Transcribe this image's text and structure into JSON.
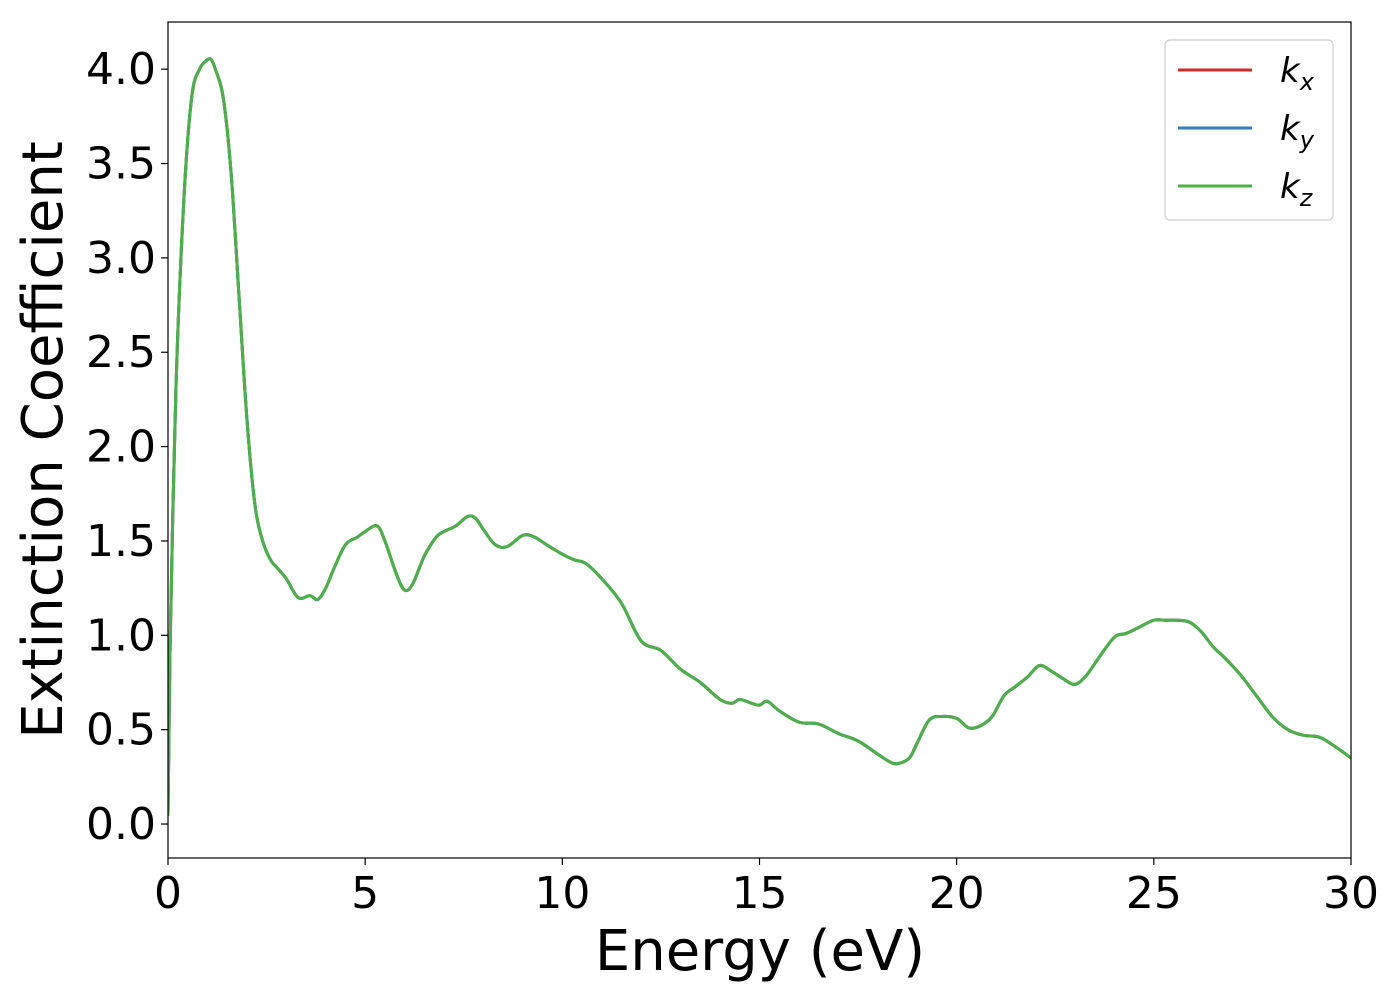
{
  "chart_data": {
    "type": "line",
    "xlabel": "Energy (eV)",
    "ylabel": "Extinction Coefficient",
    "xlim": [
      0,
      30
    ],
    "ylim": [
      -0.18,
      4.25
    ],
    "xticks": [
      0,
      5,
      10,
      15,
      20,
      25,
      30
    ],
    "xtick_labels": [
      "0",
      "5",
      "10",
      "15",
      "20",
      "25",
      "30"
    ],
    "yticks": [
      0.0,
      0.5,
      1.0,
      1.5,
      2.0,
      2.5,
      3.0,
      3.5,
      4.0
    ],
    "ytick_labels": [
      "0.0",
      "0.5",
      "1.0",
      "1.5",
      "2.0",
      "2.5",
      "3.0",
      "3.5",
      "4.0"
    ],
    "grid": false,
    "legend_position": "top-right",
    "series": [
      {
        "name": "k",
        "subscript": "x",
        "color": "#d62728",
        "x": [
          0,
          0.05,
          0.2,
          0.4,
          0.6,
          0.8,
          1.0,
          1.1,
          1.2,
          1.4,
          1.6,
          1.8,
          2.0,
          2.2,
          2.4,
          2.6,
          2.8,
          3.0,
          3.3,
          3.6,
          3.8,
          4.0,
          4.2,
          4.5,
          4.8,
          5.0,
          5.3,
          5.5,
          5.8,
          6.0,
          6.2,
          6.5,
          6.8,
          7.0,
          7.3,
          7.6,
          7.8,
          8.0,
          8.3,
          8.6,
          9.0,
          9.3,
          9.6,
          10.0,
          10.3,
          10.6,
          11.0,
          11.5,
          12.0,
          12.5,
          13.0,
          13.5,
          14.0,
          14.3,
          14.5,
          14.8,
          15.0,
          15.2,
          15.5,
          16.0,
          16.5,
          17.0,
          17.5,
          18.0,
          18.3,
          18.5,
          18.8,
          19.0,
          19.3,
          19.6,
          20.0,
          20.3,
          20.6,
          20.9,
          21.2,
          21.5,
          21.8,
          22.1,
          22.4,
          22.7,
          23.0,
          23.3,
          23.6,
          24.0,
          24.3,
          24.6,
          25.0,
          25.3,
          25.6,
          25.9,
          26.2,
          26.5,
          26.8,
          27.2,
          27.6,
          28.0,
          28.4,
          28.8,
          29.2,
          29.6,
          30.0
        ],
        "values": [
          0.05,
          0.9,
          2.3,
          3.3,
          3.85,
          4.0,
          4.05,
          4.05,
          4.0,
          3.85,
          3.45,
          2.8,
          2.15,
          1.7,
          1.5,
          1.4,
          1.35,
          1.3,
          1.2,
          1.21,
          1.19,
          1.25,
          1.35,
          1.48,
          1.52,
          1.55,
          1.58,
          1.5,
          1.32,
          1.24,
          1.27,
          1.42,
          1.52,
          1.55,
          1.58,
          1.63,
          1.62,
          1.56,
          1.48,
          1.47,
          1.53,
          1.52,
          1.48,
          1.43,
          1.4,
          1.38,
          1.3,
          1.17,
          0.97,
          0.92,
          0.82,
          0.75,
          0.66,
          0.64,
          0.66,
          0.64,
          0.63,
          0.65,
          0.6,
          0.54,
          0.53,
          0.48,
          0.44,
          0.37,
          0.33,
          0.32,
          0.35,
          0.43,
          0.55,
          0.57,
          0.56,
          0.51,
          0.52,
          0.57,
          0.68,
          0.73,
          0.78,
          0.84,
          0.81,
          0.77,
          0.74,
          0.79,
          0.88,
          0.99,
          1.01,
          1.04,
          1.08,
          1.08,
          1.08,
          1.07,
          1.02,
          0.94,
          0.88,
          0.79,
          0.68,
          0.57,
          0.5,
          0.47,
          0.46,
          0.41,
          0.35
        ]
      },
      {
        "name": "k",
        "subscript": "y",
        "color": "#377eb8",
        "x": [
          0,
          0.05,
          0.2,
          0.4,
          0.6,
          0.8,
          1.0,
          1.1,
          1.2,
          1.4,
          1.6,
          1.8,
          2.0,
          2.2,
          2.4,
          2.6,
          2.8,
          3.0,
          3.3,
          3.6,
          3.8,
          4.0,
          4.2,
          4.5,
          4.8,
          5.0,
          5.3,
          5.5,
          5.8,
          6.0,
          6.2,
          6.5,
          6.8,
          7.0,
          7.3,
          7.6,
          7.8,
          8.0,
          8.3,
          8.6,
          9.0,
          9.3,
          9.6,
          10.0,
          10.3,
          10.6,
          11.0,
          11.5,
          12.0,
          12.5,
          13.0,
          13.5,
          14.0,
          14.3,
          14.5,
          14.8,
          15.0,
          15.2,
          15.5,
          16.0,
          16.5,
          17.0,
          17.5,
          18.0,
          18.3,
          18.5,
          18.8,
          19.0,
          19.3,
          19.6,
          20.0,
          20.3,
          20.6,
          20.9,
          21.2,
          21.5,
          21.8,
          22.1,
          22.4,
          22.7,
          23.0,
          23.3,
          23.6,
          24.0,
          24.3,
          24.6,
          25.0,
          25.3,
          25.6,
          25.9,
          26.2,
          26.5,
          26.8,
          27.2,
          27.6,
          28.0,
          28.4,
          28.8,
          29.2,
          29.6,
          30.0
        ],
        "values": [
          0.05,
          0.9,
          2.3,
          3.3,
          3.85,
          4.0,
          4.05,
          4.05,
          4.0,
          3.85,
          3.45,
          2.8,
          2.15,
          1.7,
          1.5,
          1.4,
          1.35,
          1.3,
          1.2,
          1.21,
          1.19,
          1.25,
          1.35,
          1.48,
          1.52,
          1.55,
          1.58,
          1.5,
          1.32,
          1.24,
          1.27,
          1.42,
          1.52,
          1.55,
          1.58,
          1.63,
          1.62,
          1.56,
          1.48,
          1.47,
          1.53,
          1.52,
          1.48,
          1.43,
          1.4,
          1.38,
          1.3,
          1.17,
          0.97,
          0.92,
          0.82,
          0.75,
          0.66,
          0.64,
          0.66,
          0.64,
          0.63,
          0.65,
          0.6,
          0.54,
          0.53,
          0.48,
          0.44,
          0.37,
          0.33,
          0.32,
          0.35,
          0.43,
          0.55,
          0.57,
          0.56,
          0.51,
          0.52,
          0.57,
          0.68,
          0.73,
          0.78,
          0.84,
          0.81,
          0.77,
          0.74,
          0.79,
          0.88,
          0.99,
          1.01,
          1.04,
          1.08,
          1.08,
          1.08,
          1.07,
          1.02,
          0.94,
          0.88,
          0.79,
          0.68,
          0.57,
          0.5,
          0.47,
          0.46,
          0.41,
          0.35
        ]
      },
      {
        "name": "k",
        "subscript": "z",
        "color": "#4daf4a",
        "x": [
          0,
          0.05,
          0.2,
          0.4,
          0.6,
          0.8,
          1.0,
          1.1,
          1.2,
          1.4,
          1.6,
          1.8,
          2.0,
          2.2,
          2.4,
          2.6,
          2.8,
          3.0,
          3.3,
          3.6,
          3.8,
          4.0,
          4.2,
          4.5,
          4.8,
          5.0,
          5.3,
          5.5,
          5.8,
          6.0,
          6.2,
          6.5,
          6.8,
          7.0,
          7.3,
          7.6,
          7.8,
          8.0,
          8.3,
          8.6,
          9.0,
          9.3,
          9.6,
          10.0,
          10.3,
          10.6,
          11.0,
          11.5,
          12.0,
          12.5,
          13.0,
          13.5,
          14.0,
          14.3,
          14.5,
          14.8,
          15.0,
          15.2,
          15.5,
          16.0,
          16.5,
          17.0,
          17.5,
          18.0,
          18.3,
          18.5,
          18.8,
          19.0,
          19.3,
          19.6,
          20.0,
          20.3,
          20.6,
          20.9,
          21.2,
          21.5,
          21.8,
          22.1,
          22.4,
          22.7,
          23.0,
          23.3,
          23.6,
          24.0,
          24.3,
          24.6,
          25.0,
          25.3,
          25.6,
          25.9,
          26.2,
          26.5,
          26.8,
          27.2,
          27.6,
          28.0,
          28.4,
          28.8,
          29.2,
          29.6,
          30.0
        ],
        "values": [
          0.05,
          0.9,
          2.3,
          3.3,
          3.85,
          4.0,
          4.05,
          4.05,
          4.0,
          3.85,
          3.45,
          2.8,
          2.15,
          1.7,
          1.5,
          1.4,
          1.35,
          1.3,
          1.2,
          1.21,
          1.19,
          1.25,
          1.35,
          1.48,
          1.52,
          1.55,
          1.58,
          1.5,
          1.32,
          1.24,
          1.27,
          1.42,
          1.52,
          1.55,
          1.58,
          1.63,
          1.62,
          1.56,
          1.48,
          1.47,
          1.53,
          1.52,
          1.48,
          1.43,
          1.4,
          1.38,
          1.3,
          1.17,
          0.97,
          0.92,
          0.82,
          0.75,
          0.66,
          0.64,
          0.66,
          0.64,
          0.63,
          0.65,
          0.6,
          0.54,
          0.53,
          0.48,
          0.44,
          0.37,
          0.33,
          0.32,
          0.35,
          0.43,
          0.55,
          0.57,
          0.56,
          0.51,
          0.52,
          0.57,
          0.68,
          0.73,
          0.78,
          0.84,
          0.81,
          0.77,
          0.74,
          0.79,
          0.88,
          0.99,
          1.01,
          1.04,
          1.08,
          1.08,
          1.08,
          1.07,
          1.02,
          0.94,
          0.88,
          0.79,
          0.68,
          0.57,
          0.5,
          0.47,
          0.46,
          0.41,
          0.35
        ]
      }
    ]
  }
}
